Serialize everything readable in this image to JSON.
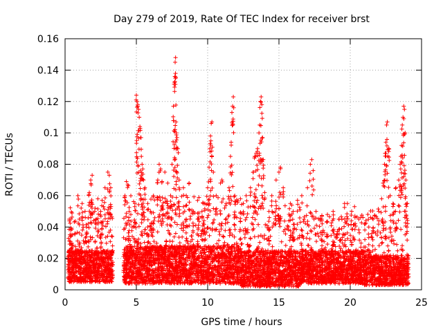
{
  "chart_data": {
    "type": "scatter",
    "title": "Day 279 of 2019, Rate Of TEC Index for receiver brst",
    "xlabel": "GPS time / hours",
    "ylabel": "ROTI / TECUs",
    "xlim": [
      0,
      25
    ],
    "ylim": [
      0,
      0.16
    ],
    "xticks": [
      0,
      5,
      10,
      15,
      20,
      25
    ],
    "xtick_labels": [
      "0",
      "5",
      "10",
      "15",
      "20",
      "25"
    ],
    "yticks": [
      0,
      0.02,
      0.04,
      0.06,
      0.08,
      0.1,
      0.12,
      0.14,
      0.16
    ],
    "ytick_labels": [
      "0",
      "0.02",
      "0.04",
      "0.06",
      "0.08",
      "0.1",
      "0.12",
      "0.14",
      "0.16"
    ],
    "grid": true,
    "marker": "+",
    "color": "#ff0000",
    "series": [
      {
        "name": "ROTI",
        "points": [
          [
            0.3,
            0.045
          ],
          [
            0.4,
            0.038
          ],
          [
            0.5,
            0.035
          ],
          [
            0.9,
            0.06
          ],
          [
            1.0,
            0.045
          ],
          [
            1.2,
            0.055
          ],
          [
            1.4,
            0.05
          ],
          [
            1.5,
            0.04
          ],
          [
            1.7,
            0.062
          ],
          [
            1.8,
            0.07
          ],
          [
            1.9,
            0.073
          ],
          [
            2.1,
            0.052
          ],
          [
            2.3,
            0.058
          ],
          [
            2.5,
            0.05
          ],
          [
            2.6,
            0.057
          ],
          [
            2.8,
            0.065
          ],
          [
            3.0,
            0.075
          ],
          [
            3.1,
            0.073
          ],
          [
            3.2,
            0.065
          ],
          [
            4.2,
            0.06
          ],
          [
            4.3,
            0.069
          ],
          [
            4.4,
            0.067
          ],
          [
            4.5,
            0.05
          ],
          [
            4.7,
            0.04
          ],
          [
            4.9,
            0.055
          ],
          [
            5.0,
            0.124
          ],
          [
            5.05,
            0.12
          ],
          [
            5.1,
            0.118
          ],
          [
            5.15,
            0.115
          ],
          [
            5.2,
            0.11
          ],
          [
            5.25,
            0.104
          ],
          [
            5.3,
            0.097
          ],
          [
            5.35,
            0.085
          ],
          [
            5.4,
            0.08
          ],
          [
            5.45,
            0.077
          ],
          [
            5.5,
            0.07
          ],
          [
            5.6,
            0.065
          ],
          [
            5.8,
            0.055
          ],
          [
            6.0,
            0.05
          ],
          [
            6.2,
            0.06
          ],
          [
            6.5,
            0.07
          ],
          [
            6.6,
            0.08
          ],
          [
            6.7,
            0.077
          ],
          [
            6.8,
            0.069
          ],
          [
            7.0,
            0.075
          ],
          [
            7.2,
            0.068
          ],
          [
            7.4,
            0.06
          ],
          [
            7.5,
            0.08
          ],
          [
            7.6,
            0.117
          ],
          [
            7.65,
            0.131
          ],
          [
            7.7,
            0.136
          ],
          [
            7.72,
            0.145
          ],
          [
            7.75,
            0.148
          ],
          [
            7.78,
            0.107
          ],
          [
            7.8,
            0.1
          ],
          [
            7.85,
            0.097
          ],
          [
            7.9,
            0.09
          ],
          [
            8.0,
            0.07
          ],
          [
            8.3,
            0.065
          ],
          [
            8.5,
            0.06
          ],
          [
            8.7,
            0.068
          ],
          [
            9.0,
            0.05
          ],
          [
            9.3,
            0.045
          ],
          [
            9.6,
            0.05
          ],
          [
            9.8,
            0.055
          ],
          [
            10.0,
            0.065
          ],
          [
            10.1,
            0.078
          ],
          [
            10.15,
            0.09
          ],
          [
            10.2,
            0.098
          ],
          [
            10.25,
            0.106
          ],
          [
            10.3,
            0.107
          ],
          [
            10.4,
            0.075
          ],
          [
            10.6,
            0.06
          ],
          [
            10.9,
            0.068
          ],
          [
            11.0,
            0.07
          ],
          [
            11.3,
            0.055
          ],
          [
            11.5,
            0.065
          ],
          [
            11.6,
            0.085
          ],
          [
            11.65,
            0.094
          ],
          [
            11.7,
            0.113
          ],
          [
            11.75,
            0.117
          ],
          [
            11.8,
            0.123
          ],
          [
            11.9,
            0.06
          ],
          [
            12.3,
            0.058
          ],
          [
            12.5,
            0.055
          ],
          [
            12.7,
            0.06
          ],
          [
            13.0,
            0.065
          ],
          [
            13.2,
            0.075
          ],
          [
            13.3,
            0.085
          ],
          [
            13.4,
            0.087
          ],
          [
            13.5,
            0.09
          ],
          [
            13.6,
            0.1
          ],
          [
            13.65,
            0.105
          ],
          [
            13.7,
            0.12
          ],
          [
            13.75,
            0.123
          ],
          [
            13.8,
            0.118
          ],
          [
            13.85,
            0.097
          ],
          [
            13.9,
            0.083
          ],
          [
            14.0,
            0.062
          ],
          [
            14.3,
            0.05
          ],
          [
            14.5,
            0.06
          ],
          [
            14.8,
            0.07
          ],
          [
            15.0,
            0.075
          ],
          [
            15.1,
            0.078
          ],
          [
            15.3,
            0.065
          ],
          [
            15.8,
            0.055
          ],
          [
            16.0,
            0.05
          ],
          [
            16.3,
            0.057
          ],
          [
            16.6,
            0.06
          ],
          [
            17.0,
            0.065
          ],
          [
            17.2,
            0.08
          ],
          [
            17.3,
            0.083
          ],
          [
            17.4,
            0.076
          ],
          [
            17.6,
            0.05
          ],
          [
            18.0,
            0.045
          ],
          [
            18.4,
            0.048
          ],
          [
            18.8,
            0.05
          ],
          [
            19.2,
            0.045
          ],
          [
            19.6,
            0.055
          ],
          [
            19.8,
            0.055
          ],
          [
            20.1,
            0.05
          ],
          [
            20.3,
            0.053
          ],
          [
            20.6,
            0.045
          ],
          [
            21.0,
            0.042
          ],
          [
            21.3,
            0.04
          ],
          [
            21.6,
            0.045
          ],
          [
            22.0,
            0.05
          ],
          [
            22.2,
            0.058
          ],
          [
            22.3,
            0.068
          ],
          [
            22.4,
            0.08
          ],
          [
            22.45,
            0.087
          ],
          [
            22.5,
            0.094
          ],
          [
            22.55,
            0.105
          ],
          [
            22.6,
            0.107
          ],
          [
            22.7,
            0.09
          ],
          [
            22.8,
            0.06
          ],
          [
            23.0,
            0.055
          ],
          [
            23.2,
            0.065
          ],
          [
            23.4,
            0.07
          ],
          [
            23.5,
            0.08
          ],
          [
            23.55,
            0.085
          ],
          [
            23.6,
            0.092
          ],
          [
            23.65,
            0.105
          ],
          [
            23.7,
            0.11
          ],
          [
            23.75,
            0.117
          ],
          [
            23.8,
            0.115
          ],
          [
            23.85,
            0.1
          ],
          [
            23.9,
            0.07
          ],
          [
            24.0,
            0.055
          ]
        ],
        "dense_segments": [
          {
            "x": [
              0.2,
              3.35
            ],
            "baseline": [
              0.005,
              0.025
            ],
            "upper": 0.055
          },
          {
            "x": [
              4.1,
              12.3
            ],
            "baseline": [
              0.004,
              0.028
            ],
            "upper": 0.06
          },
          {
            "x": [
              12.3,
              16.5
            ],
            "baseline": [
              0.002,
              0.025
            ],
            "upper": 0.055
          },
          {
            "x": [
              16.5,
              21.0
            ],
            "baseline": [
              0.004,
              0.025
            ],
            "upper": 0.048
          },
          {
            "x": [
              21.0,
              24.1
            ],
            "baseline": [
              0.003,
              0.022
            ],
            "upper": 0.052
          }
        ]
      }
    ]
  }
}
